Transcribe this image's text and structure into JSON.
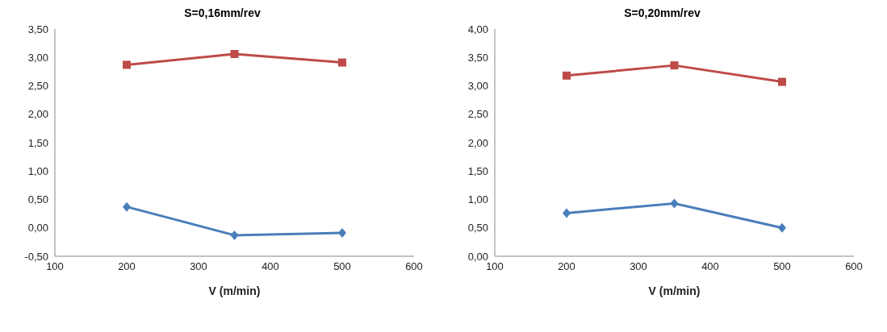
{
  "chart_data": [
    {
      "type": "line",
      "title": "S=0,16mm/rev",
      "xlabel": "V (m/min)",
      "x": [
        200,
        350,
        500
      ],
      "xlim": [
        100,
        600
      ],
      "xticks": [
        100,
        200,
        300,
        400,
        500,
        600
      ],
      "ylim": [
        -0.5,
        3.5
      ],
      "yticks": [
        {
          "value": -0.5,
          "label": "-0,50"
        },
        {
          "value": 0,
          "label": "0,00"
        },
        {
          "value": 0.5,
          "label": "0,50"
        },
        {
          "value": 1,
          "label": "1,00"
        },
        {
          "value": 1.5,
          "label": "1,50"
        },
        {
          "value": 2,
          "label": "2,00"
        },
        {
          "value": 2.5,
          "label": "2,50"
        },
        {
          "value": 3,
          "label": "3,00"
        },
        {
          "value": 3.5,
          "label": "3,50"
        }
      ],
      "grid": false,
      "legend": false,
      "series": [
        {
          "color": "#4a7ebb",
          "marker": "diamond",
          "values": [
            0.37,
            -0.13,
            -0.09
          ]
        },
        {
          "color": "#be4b48",
          "marker": "square",
          "values": [
            2.87,
            3.06,
            2.91
          ]
        }
      ]
    },
    {
      "type": "line",
      "title": "S=0,20mm/rev",
      "xlabel": "V (m/min)",
      "x": [
        200,
        350,
        500
      ],
      "xlim": [
        100,
        600
      ],
      "xticks": [
        100,
        200,
        300,
        400,
        500,
        600
      ],
      "ylim": [
        0,
        4
      ],
      "yticks": [
        {
          "value": 0,
          "label": "0,00"
        },
        {
          "value": 0.5,
          "label": "0,50"
        },
        {
          "value": 1,
          "label": "1,00"
        },
        {
          "value": 1.5,
          "label": "1,50"
        },
        {
          "value": 2,
          "label": "2,00"
        },
        {
          "value": 2.5,
          "label": "2,50"
        },
        {
          "value": 3,
          "label": "3,00"
        },
        {
          "value": 3.5,
          "label": "3,50"
        },
        {
          "value": 4,
          "label": "4,00"
        }
      ],
      "grid": false,
      "legend": false,
      "series": [
        {
          "color": "#4a7ebb",
          "marker": "diamond",
          "values": [
            0.76,
            0.93,
            0.5
          ]
        },
        {
          "color": "#be4b48",
          "marker": "square",
          "values": [
            3.18,
            3.36,
            3.07
          ]
        }
      ]
    }
  ]
}
